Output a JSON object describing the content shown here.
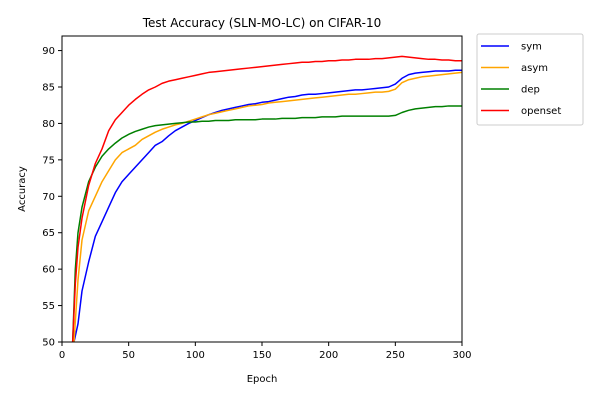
{
  "chart_data": {
    "type": "line",
    "title": "Test Accuracy (SLN-MO-LC) on CIFAR-10",
    "xlabel": "Epoch",
    "ylabel": "Accuracy",
    "xlim": [
      0,
      300
    ],
    "ylim": [
      50,
      92
    ],
    "xticks": [
      0,
      50,
      100,
      150,
      200,
      250,
      300
    ],
    "yticks": [
      50,
      55,
      60,
      65,
      70,
      75,
      80,
      85,
      90
    ],
    "grid": false,
    "legend": "outside-upper-right",
    "series": [
      {
        "name": "sym",
        "color": "#0000ff",
        "x": [
          1,
          5,
          9,
          12,
          15,
          20,
          25,
          30,
          35,
          40,
          45,
          50,
          55,
          60,
          65,
          70,
          75,
          80,
          85,
          90,
          95,
          100,
          105,
          110,
          115,
          120,
          125,
          130,
          135,
          140,
          145,
          150,
          155,
          160,
          165,
          170,
          175,
          180,
          185,
          190,
          195,
          200,
          205,
          210,
          215,
          220,
          225,
          230,
          235,
          240,
          245,
          250,
          255,
          260,
          265,
          270,
          275,
          280,
          285,
          290,
          295,
          300
        ],
        "y": [
          49.0,
          49.5,
          50.0,
          52.5,
          57.0,
          61.0,
          64.5,
          66.5,
          68.5,
          70.5,
          72.0,
          73.0,
          74.0,
          75.0,
          76.0,
          77.0,
          77.5,
          78.3,
          79.0,
          79.5,
          80.0,
          80.4,
          80.8,
          81.2,
          81.5,
          81.8,
          82.0,
          82.2,
          82.4,
          82.6,
          82.7,
          82.9,
          83.0,
          83.2,
          83.4,
          83.6,
          83.7,
          83.9,
          84.0,
          84.0,
          84.1,
          84.2,
          84.3,
          84.4,
          84.5,
          84.6,
          84.6,
          84.7,
          84.8,
          84.9,
          85.0,
          85.4,
          86.2,
          86.7,
          86.9,
          87.0,
          87.1,
          87.2,
          87.2,
          87.2,
          87.3,
          87.3
        ]
      },
      {
        "name": "asym",
        "color": "#ffa500",
        "x": [
          1,
          5,
          9,
          12,
          15,
          20,
          25,
          30,
          35,
          40,
          45,
          50,
          55,
          60,
          65,
          70,
          75,
          80,
          85,
          90,
          95,
          100,
          105,
          110,
          115,
          120,
          125,
          130,
          135,
          140,
          145,
          150,
          155,
          160,
          165,
          170,
          175,
          180,
          185,
          190,
          195,
          200,
          205,
          210,
          215,
          220,
          225,
          230,
          235,
          240,
          245,
          250,
          255,
          260,
          265,
          270,
          275,
          280,
          285,
          290,
          295,
          300
        ],
        "y": [
          49.0,
          49.5,
          50.0,
          58.5,
          64.0,
          68.0,
          70.0,
          72.0,
          73.5,
          75.0,
          76.0,
          76.5,
          77.0,
          77.8,
          78.3,
          78.8,
          79.2,
          79.5,
          79.8,
          80.0,
          80.3,
          80.6,
          80.9,
          81.2,
          81.4,
          81.6,
          81.8,
          82.0,
          82.2,
          82.4,
          82.5,
          82.6,
          82.8,
          82.9,
          83.0,
          83.1,
          83.2,
          83.3,
          83.4,
          83.5,
          83.6,
          83.7,
          83.8,
          83.9,
          84.0,
          84.0,
          84.1,
          84.2,
          84.3,
          84.3,
          84.4,
          84.7,
          85.6,
          86.0,
          86.2,
          86.4,
          86.5,
          86.6,
          86.7,
          86.8,
          86.9,
          87.0
        ]
      },
      {
        "name": "dep",
        "color": "#008000",
        "x": [
          1,
          5,
          8,
          10,
          12,
          15,
          20,
          25,
          30,
          35,
          40,
          45,
          50,
          55,
          60,
          65,
          70,
          75,
          80,
          85,
          90,
          95,
          100,
          105,
          110,
          115,
          120,
          125,
          130,
          135,
          140,
          145,
          150,
          155,
          160,
          165,
          170,
          175,
          180,
          185,
          190,
          195,
          200,
          205,
          210,
          215,
          220,
          225,
          230,
          235,
          240,
          245,
          250,
          255,
          260,
          265,
          270,
          275,
          280,
          285,
          290,
          295,
          300
        ],
        "y": [
          49.0,
          49.5,
          50.0,
          60.0,
          65.0,
          68.5,
          72.0,
          74.0,
          75.5,
          76.5,
          77.3,
          78.0,
          78.5,
          78.9,
          79.2,
          79.5,
          79.7,
          79.8,
          79.9,
          80.0,
          80.1,
          80.2,
          80.2,
          80.3,
          80.3,
          80.4,
          80.4,
          80.4,
          80.5,
          80.5,
          80.5,
          80.5,
          80.6,
          80.6,
          80.6,
          80.7,
          80.7,
          80.7,
          80.8,
          80.8,
          80.8,
          80.9,
          80.9,
          80.9,
          81.0,
          81.0,
          81.0,
          81.0,
          81.0,
          81.0,
          81.0,
          81.0,
          81.1,
          81.5,
          81.8,
          82.0,
          82.1,
          82.2,
          82.3,
          82.3,
          82.4,
          82.4,
          82.4
        ]
      },
      {
        "name": "openset",
        "color": "#ff0000",
        "x": [
          1,
          5,
          8,
          10,
          12,
          15,
          20,
          25,
          30,
          35,
          40,
          45,
          50,
          55,
          60,
          65,
          70,
          75,
          80,
          85,
          90,
          95,
          100,
          105,
          110,
          115,
          120,
          125,
          130,
          135,
          140,
          145,
          150,
          155,
          160,
          165,
          170,
          175,
          180,
          185,
          190,
          195,
          200,
          205,
          210,
          215,
          220,
          225,
          230,
          235,
          240,
          245,
          250,
          255,
          260,
          265,
          270,
          275,
          280,
          285,
          290,
          295,
          300
        ],
        "y": [
          49.0,
          49.5,
          50.0,
          58.0,
          63.0,
          67.0,
          71.5,
          74.5,
          76.5,
          79.0,
          80.5,
          81.5,
          82.5,
          83.3,
          84.0,
          84.6,
          85.0,
          85.5,
          85.8,
          86.0,
          86.2,
          86.4,
          86.6,
          86.8,
          87.0,
          87.1,
          87.2,
          87.3,
          87.4,
          87.5,
          87.6,
          87.7,
          87.8,
          87.9,
          88.0,
          88.1,
          88.2,
          88.3,
          88.4,
          88.4,
          88.5,
          88.5,
          88.6,
          88.6,
          88.7,
          88.7,
          88.8,
          88.8,
          88.8,
          88.9,
          88.9,
          89.0,
          89.1,
          89.2,
          89.1,
          89.0,
          88.9,
          88.8,
          88.8,
          88.7,
          88.7,
          88.6,
          88.6
        ]
      }
    ]
  }
}
